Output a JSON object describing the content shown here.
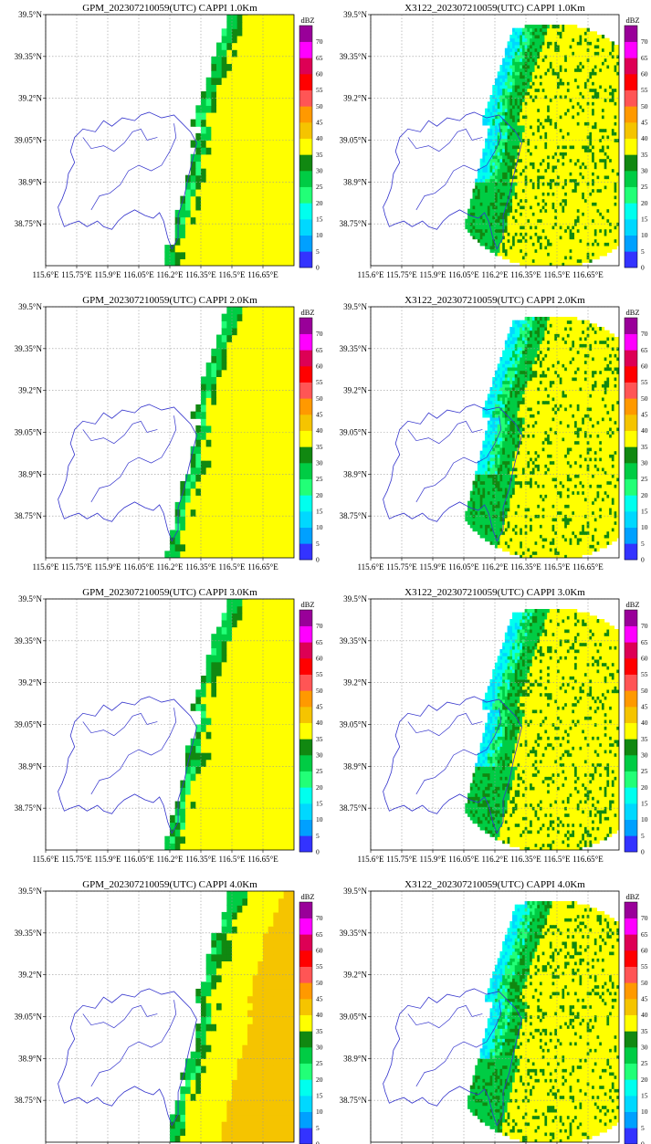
{
  "figure": {
    "panels": [
      {
        "title": "GPM_202307210059(UTC) CAPPI  1.0Km",
        "source": "GPM",
        "height_km": 1.0
      },
      {
        "title": "X3122_202307210059(UTC)  CAPPI  1.0Km",
        "source": "X3122",
        "height_km": 1.0
      },
      {
        "title": "GPM_202307210059(UTC) CAPPI  2.0Km",
        "source": "GPM",
        "height_km": 2.0
      },
      {
        "title": "X3122_202307210059(UTC)  CAPPI  2.0Km",
        "source": "X3122",
        "height_km": 2.0
      },
      {
        "title": "GPM_202307210059(UTC) CAPPI  3.0Km",
        "source": "GPM",
        "height_km": 3.0
      },
      {
        "title": "X3122_202307210059(UTC)  CAPPI  3.0Km",
        "source": "X3122",
        "height_km": 3.0
      },
      {
        "title": "GPM_202307210059(UTC) CAPPI  4.0Km",
        "source": "GPM",
        "height_km": 4.0
      },
      {
        "title": "X3122_202307210059(UTC)  CAPPI  4.0Km",
        "source": "X3122",
        "height_km": 4.0
      }
    ]
  },
  "chart_data": {
    "type": "heatmap",
    "x_ticks": [
      115.6,
      115.75,
      115.9,
      116.05,
      116.2,
      116.35,
      116.5,
      116.65
    ],
    "x_tick_labels": [
      "115.6°E",
      "115.75°E",
      "115.9°E",
      "116.05°E",
      "116.2°E",
      "116.35°E",
      "116.5°E",
      "116.65°E"
    ],
    "y_ticks": [
      38.75,
      38.9,
      39.05,
      39.2,
      39.35,
      39.5
    ],
    "y_tick_labels": [
      "38.75°N",
      "38.9°N",
      "39.05°N",
      "39.2°N",
      "39.35°N",
      "39.5°N"
    ],
    "xlim": [
      115.6,
      116.8
    ],
    "ylim": [
      38.6,
      39.5
    ],
    "grid": true,
    "colorbar": {
      "unit": "dBZ",
      "levels": [
        0,
        5,
        10,
        15,
        20,
        25,
        30,
        35,
        40,
        45,
        50,
        55,
        60,
        65,
        70
      ],
      "labels": [
        "0",
        "5",
        "10",
        "15",
        "20",
        "25",
        "30",
        "35",
        "40",
        "45",
        "50",
        "55",
        "60",
        "65",
        "70"
      ],
      "colors": [
        "#3333ff",
        "#00a0ff",
        "#00d8ff",
        "#00ffee",
        "#22ff77",
        "#00cc44",
        "#118811",
        "#ffff00",
        "#f5c400",
        "#ff9900",
        "#ff5555",
        "#ff0000",
        "#dd0055",
        "#ff00ff",
        "#990099"
      ]
    },
    "boundary_color": "#3333cc",
    "radar_dBZ_typical": {
      "echo_core": 37,
      "echo_edge": 25
    },
    "gpm_dBZ_typical": {
      "echo_core": 37,
      "echo_edge": 25
    }
  }
}
